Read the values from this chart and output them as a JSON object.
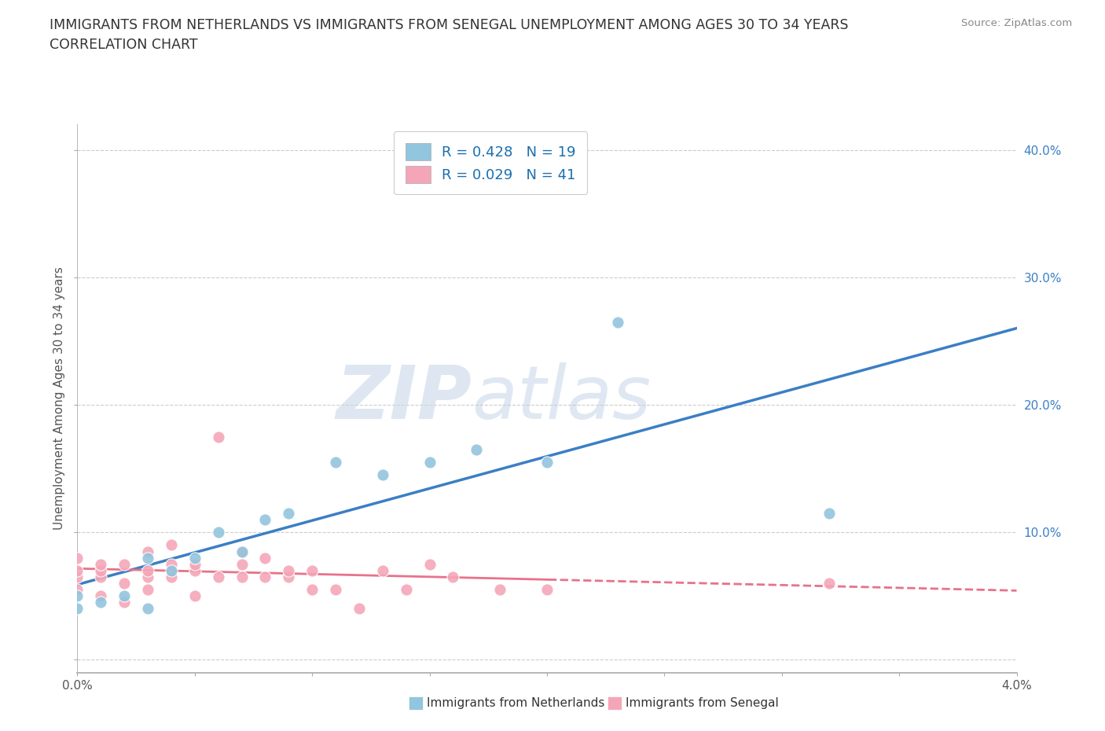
{
  "title_line1": "IMMIGRANTS FROM NETHERLANDS VS IMMIGRANTS FROM SENEGAL UNEMPLOYMENT AMONG AGES 30 TO 34 YEARS",
  "title_line2": "CORRELATION CHART",
  "source_text": "Source: ZipAtlas.com",
  "ylabel": "Unemployment Among Ages 30 to 34 years",
  "xlim": [
    0.0,
    0.04
  ],
  "ylim": [
    -0.01,
    0.42
  ],
  "x_ticks": [
    0.0,
    0.005,
    0.01,
    0.015,
    0.02,
    0.025,
    0.03,
    0.035,
    0.04
  ],
  "x_tick_labels": [
    "0.0%",
    "",
    "",
    "",
    "",
    "",
    "",
    "",
    "4.0%"
  ],
  "y_ticks": [
    0.0,
    0.1,
    0.2,
    0.3,
    0.4
  ],
  "y_tick_labels": [
    "",
    "10.0%",
    "20.0%",
    "30.0%",
    "40.0%"
  ],
  "netherlands_R": 0.428,
  "netherlands_N": 19,
  "senegal_R": 0.029,
  "senegal_N": 41,
  "netherlands_color": "#92c5de",
  "senegal_color": "#f4a6b8",
  "netherlands_line_color": "#3b7fc4",
  "senegal_line_color": "#e8728a",
  "watermark_zip": "ZIP",
  "watermark_atlas": "atlas",
  "netherlands_x": [
    0.0,
    0.0,
    0.001,
    0.002,
    0.003,
    0.003,
    0.004,
    0.005,
    0.006,
    0.007,
    0.008,
    0.009,
    0.011,
    0.013,
    0.015,
    0.017,
    0.02,
    0.023,
    0.032
  ],
  "netherlands_y": [
    0.04,
    0.05,
    0.045,
    0.05,
    0.04,
    0.08,
    0.07,
    0.08,
    0.1,
    0.085,
    0.11,
    0.115,
    0.155,
    0.145,
    0.155,
    0.165,
    0.155,
    0.265,
    0.115
  ],
  "senegal_x": [
    0.0,
    0.0,
    0.0,
    0.0,
    0.001,
    0.001,
    0.001,
    0.001,
    0.002,
    0.002,
    0.002,
    0.003,
    0.003,
    0.003,
    0.003,
    0.004,
    0.004,
    0.004,
    0.005,
    0.005,
    0.005,
    0.006,
    0.006,
    0.007,
    0.007,
    0.007,
    0.008,
    0.008,
    0.009,
    0.009,
    0.01,
    0.01,
    0.011,
    0.012,
    0.013,
    0.014,
    0.015,
    0.016,
    0.018,
    0.02,
    0.032
  ],
  "senegal_y": [
    0.055,
    0.065,
    0.07,
    0.08,
    0.05,
    0.065,
    0.07,
    0.075,
    0.045,
    0.06,
    0.075,
    0.055,
    0.065,
    0.07,
    0.085,
    0.065,
    0.075,
    0.09,
    0.05,
    0.07,
    0.075,
    0.065,
    0.175,
    0.065,
    0.075,
    0.085,
    0.065,
    0.08,
    0.065,
    0.07,
    0.055,
    0.07,
    0.055,
    0.04,
    0.07,
    0.055,
    0.075,
    0.065,
    0.055,
    0.055,
    0.06
  ],
  "background_color": "#ffffff",
  "grid_color": "#cccccc"
}
